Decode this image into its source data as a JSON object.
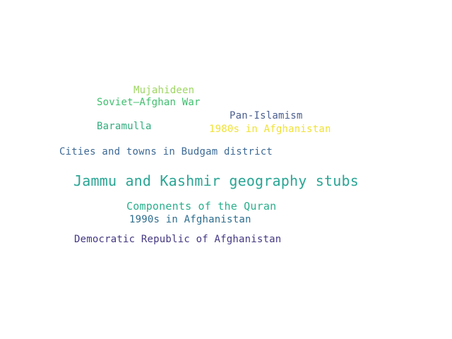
{
  "word_cloud": {
    "words": [
      {
        "text": "Mujahideen",
        "color": "#9ed660"
      },
      {
        "text": "Soviet–Afghan War",
        "color": "#3fbf6e"
      },
      {
        "text": "Pan-Islamism",
        "color": "#4b5f8f"
      },
      {
        "text": "Baramulla",
        "color": "#30ad7f"
      },
      {
        "text": "1980s in Afghanistan",
        "color": "#f0e236"
      },
      {
        "text": "Cities and towns in Budgam district",
        "color": "#3e6a95"
      },
      {
        "text": "Jammu and Kashmir geography stubs",
        "color": "#2aa594"
      },
      {
        "text": "Components of the Quran",
        "color": "#2aaf8c"
      },
      {
        "text": "1990s in Afghanistan",
        "color": "#2e6e8e"
      },
      {
        "text": "Democratic Republic of Afghanistan",
        "color": "#453882"
      }
    ]
  }
}
